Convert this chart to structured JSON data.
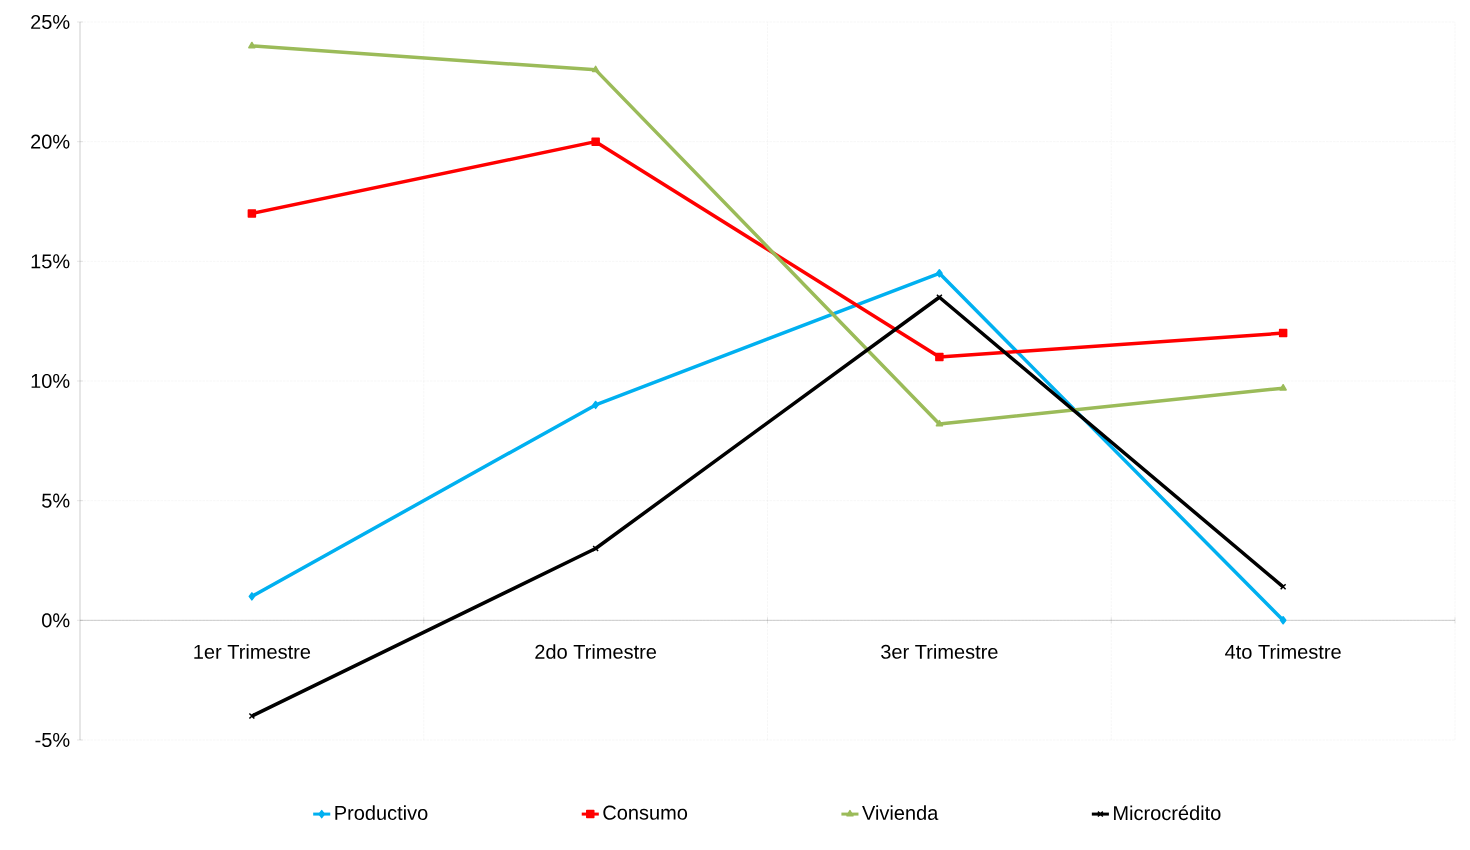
{
  "chart_data": {
    "type": "line",
    "categories": [
      "1er Trimestre",
      "2do Trimestre",
      "3er Trimestre",
      "4to Trimestre"
    ],
    "series": [
      {
        "name": "Productivo",
        "color": "#00b0f0",
        "marker": "diamond",
        "values": [
          1.0,
          9.0,
          14.5,
          0.0
        ]
      },
      {
        "name": "Consumo",
        "color": "#ff0000",
        "marker": "square",
        "values": [
          17.0,
          20.0,
          11.0,
          12.0
        ]
      },
      {
        "name": "Vivienda",
        "color": "#9bbb59",
        "marker": "triangle",
        "values": [
          24.0,
          23.0,
          8.2,
          9.7
        ]
      },
      {
        "name": "Microcrédito",
        "color": "#000000",
        "marker": "cross",
        "values": [
          -4.0,
          3.0,
          13.5,
          1.4
        ]
      }
    ],
    "ylim": [
      -5,
      25
    ],
    "yticks": [
      {
        "value": -5,
        "label": "-5%"
      },
      {
        "value": 0,
        "label": "0%"
      },
      {
        "value": 5,
        "label": "5%"
      },
      {
        "value": 10,
        "label": "10%"
      },
      {
        "value": 15,
        "label": "15%"
      },
      {
        "value": 20,
        "label": "20%"
      },
      {
        "value": 25,
        "label": "25%"
      }
    ],
    "grid": true,
    "legend": "bottom",
    "line_style": "solid"
  }
}
